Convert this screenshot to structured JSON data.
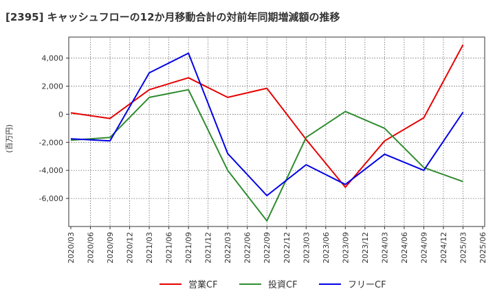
{
  "chart_data": {
    "type": "line",
    "title": "[2395]  キャッシュフローの12か月移動合計の対前年同期増減額の推移",
    "ylabel": "(百万円)",
    "xlabel": "",
    "ylim": [
      -8000,
      5500
    ],
    "yticks": [
      4000,
      2000,
      0,
      -2000,
      -4000,
      -6000
    ],
    "ytick_labels": [
      "4,000",
      "2,000",
      "0",
      "-2,000",
      "-4,000",
      "-6,000"
    ],
    "categories": [
      "2020/03",
      "2020/06",
      "2020/09",
      "2020/12",
      "2021/03",
      "2021/06",
      "2021/09",
      "2021/12",
      "2022/03",
      "2022/06",
      "2022/09",
      "2022/12",
      "2023/03",
      "2023/06",
      "2023/09",
      "2023/12",
      "2024/03",
      "2024/06",
      "2024/09",
      "2024/12",
      "2025/03",
      "2025/06"
    ],
    "grid": true,
    "legend_position": "bottom",
    "series": [
      {
        "name": "営業CF",
        "color": "#e60000",
        "values": [
          100,
          null,
          -300,
          null,
          1750,
          null,
          2600,
          null,
          1200,
          null,
          1850,
          null,
          -1800,
          null,
          -5200,
          null,
          -1900,
          null,
          -250,
          null,
          4950,
          null
        ]
      },
      {
        "name": "投資CF",
        "color": "#2e8b2e",
        "values": [
          -1850,
          null,
          -1650,
          null,
          1200,
          null,
          1750,
          null,
          -4000,
          null,
          -7600,
          null,
          -1650,
          null,
          200,
          null,
          -1000,
          null,
          -3800,
          null,
          -4800,
          null
        ]
      },
      {
        "name": "フリーCF",
        "color": "#0000e6",
        "values": [
          -1750,
          null,
          -1900,
          null,
          2950,
          null,
          4350,
          null,
          -2800,
          null,
          -5800,
          null,
          -3600,
          null,
          -5000,
          null,
          -2850,
          null,
          -4000,
          null,
          150,
          null
        ]
      }
    ]
  }
}
